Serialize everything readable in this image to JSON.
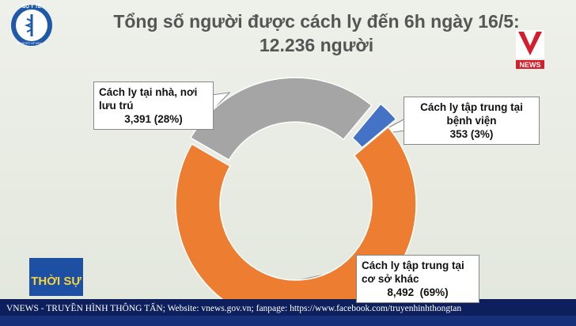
{
  "chart_data": {
    "type": "donut",
    "title": "Tổng số người được cách ly đến 6h ngày 16/5:",
    "subtitle": "12.236 người",
    "categories": [
      "Cách ly tại nhà, nơi lưu trú",
      "Cách ly tập trung tại bệnh viện",
      "Cách ly tập trung tại cơ sở khác"
    ],
    "values": [
      3391,
      353,
      8492
    ],
    "value_labels": [
      "3,391 (28%)",
      "353 (3%)",
      "8,492  (69%)"
    ],
    "colors": [
      "#a5a5a5",
      "#4472c4",
      "#ed7d31"
    ]
  },
  "logo": {
    "top": "BỘ Y TẾ",
    "bottom": "MINISTRY OF HEALTH"
  },
  "channel": {
    "badge": "NEWS",
    "program": "THỜI SỰ"
  },
  "ticker": "VNEWS - TRUYỀN HÌNH THÔNG TẤN; Website: vnews.gov.vn; fanpage: https://www.facebook.com/truyenhinhthongtan"
}
